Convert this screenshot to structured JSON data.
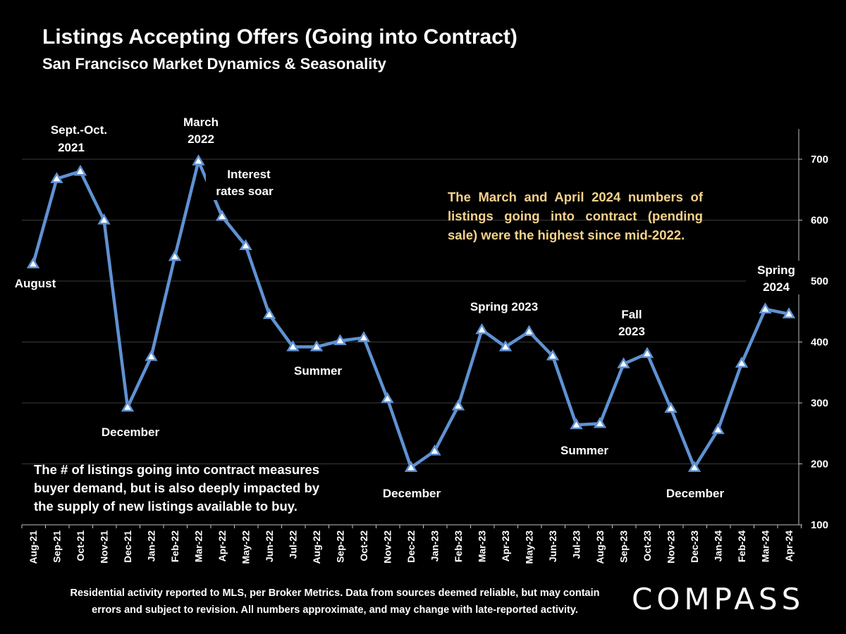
{
  "header": {
    "title": "Listings Accepting Offers (Going into Contract)",
    "subtitle": "San Francisco Market Dynamics & Seasonality"
  },
  "notes": {
    "top_right": "The March and April 2024 numbers of listings going into contract (pending sale) were the highest since mid-2022.",
    "bottom_left": "The # of listings going into contract measures buyer demand, but is also deeply impacted by the supply of new listings available to buy."
  },
  "footer": {
    "line1": "Residential activity reported to MLS, per Broker Metrics. Data from sources deemed reliable, but may contain",
    "line2": "errors and subject to revision. All numbers approximate, and may change with late-reported activity."
  },
  "brand": {
    "logo_text": "COMPASS"
  },
  "colors": {
    "background": "#000000",
    "line": "#5f92d3",
    "marker_fill": "#ffffff",
    "note_highlight": "#f6d28a",
    "gridline": "#3a3a3a",
    "text": "#ffffff"
  },
  "chart_data": {
    "type": "line",
    "title": "Listings Accepting Offers (Going into Contract)",
    "subtitle": "San Francisco Market Dynamics & Seasonality",
    "xlabel": "",
    "ylabel": "",
    "ylim": [
      100,
      700
    ],
    "y_ticks": [
      100,
      200,
      300,
      400,
      500,
      600,
      700
    ],
    "y_axis_side": "right",
    "grid": true,
    "legend": "none",
    "categories": [
      "Aug-21",
      "Sep-21",
      "Oct-21",
      "Nov-21",
      "Dec-21",
      "Jan-22",
      "Feb-22",
      "Mar-22",
      "Apr-22",
      "May-22",
      "Jun-22",
      "Jul-22",
      "Aug-22",
      "Sep-22",
      "Oct-22",
      "Nov-22",
      "Dec-22",
      "Jan-23",
      "Feb-23",
      "Mar-23",
      "Apr-23",
      "May-23",
      "Jun-23",
      "Jul-23",
      "Aug-23",
      "Sep-23",
      "Oct-23",
      "Nov-23",
      "Dec-23",
      "Jan-24",
      "Feb-24",
      "Mar-24",
      "Apr-24"
    ],
    "series": [
      {
        "name": "Listings Accepting Offers",
        "values": [
          528,
          668,
          680,
          600,
          293,
          376,
          540,
          697,
          606,
          558,
          445,
          392,
          392,
          402,
          407,
          307,
          194,
          221,
          295,
          420,
          392,
          417,
          377,
          264,
          266,
          364,
          381,
          291,
          194,
          256,
          365,
          454,
          446
        ]
      }
    ],
    "annotations": [
      {
        "lines": [
          "August"
        ],
        "category": "Aug-21"
      },
      {
        "lines": [
          "Sept.-Oct.",
          "2021"
        ],
        "category": "Sep-21"
      },
      {
        "lines": [
          "December"
        ],
        "category": "Dec-21"
      },
      {
        "lines": [
          "March",
          "2022"
        ],
        "category": "Mar-22"
      },
      {
        "lines": [
          "Interest",
          "rates soar"
        ],
        "category": "Apr-22"
      },
      {
        "lines": [
          "Summer"
        ],
        "category": "Aug-22"
      },
      {
        "lines": [
          "December"
        ],
        "category": "Dec-22"
      },
      {
        "lines": [
          "Spring 2023"
        ],
        "category": "Apr-23"
      },
      {
        "lines": [
          "Summer"
        ],
        "category": "Jul-23"
      },
      {
        "lines": [
          "Fall",
          "2023"
        ],
        "category": "Sep-23"
      },
      {
        "lines": [
          "December"
        ],
        "category": "Dec-23"
      },
      {
        "lines": [
          "Spring",
          "2024"
        ],
        "category": "Mar-24"
      }
    ]
  }
}
